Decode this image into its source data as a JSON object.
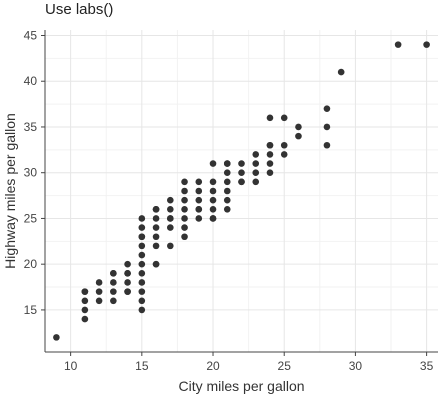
{
  "chart_data": {
    "type": "scatter",
    "title": "Use labs()",
    "xlabel": "City miles per gallon",
    "ylabel": "Highway miles per gallon",
    "xlim": [
      8.2,
      35.8
    ],
    "ylim": [
      10.4,
      45.6
    ],
    "xticks": [
      "10",
      "15",
      "20",
      "25",
      "30",
      "35"
    ],
    "yticks": [
      "15",
      "20",
      "25",
      "30",
      "35",
      "40",
      "45"
    ],
    "grid": true,
    "point_color": "#333333",
    "x": [
      9,
      11,
      11,
      11,
      11,
      11,
      12,
      12,
      12,
      13,
      13,
      13,
      13,
      13,
      14,
      14,
      14,
      14,
      14,
      14,
      15,
      15,
      15,
      15,
      15,
      15,
      15,
      15,
      15,
      15,
      15,
      15,
      16,
      16,
      16,
      16,
      16,
      16,
      16,
      16,
      16,
      17,
      17,
      17,
      17,
      17,
      17,
      18,
      18,
      18,
      18,
      18,
      18,
      18,
      19,
      19,
      19,
      19,
      19,
      19,
      20,
      20,
      20,
      20,
      20,
      20,
      20,
      21,
      21,
      21,
      21,
      21,
      21,
      21,
      22,
      22,
      22,
      22,
      23,
      23,
      23,
      23,
      24,
      24,
      24,
      24,
      24,
      24,
      25,
      25,
      25,
      26,
      26,
      28,
      28,
      28,
      29,
      33,
      35
    ],
    "y": [
      12,
      14,
      15,
      16,
      17,
      17,
      16,
      17,
      18,
      16,
      17,
      18,
      19,
      19,
      17,
      17,
      18,
      19,
      19,
      20,
      15,
      16,
      17,
      18,
      19,
      20,
      21,
      22,
      23,
      23,
      24,
      25,
      20,
      20,
      22,
      23,
      24,
      25,
      26,
      26,
      26,
      22,
      24,
      25,
      25,
      26,
      27,
      23,
      24,
      25,
      26,
      27,
      28,
      29,
      25,
      26,
      26,
      27,
      28,
      29,
      25,
      25,
      26,
      27,
      28,
      29,
      31,
      26,
      27,
      28,
      29,
      30,
      31,
      31,
      29,
      29,
      30,
      31,
      29,
      30,
      31,
      32,
      30,
      31,
      32,
      33,
      33,
      36,
      32,
      33,
      36,
      34,
      35,
      33,
      35,
      37,
      41,
      44,
      44
    ]
  }
}
